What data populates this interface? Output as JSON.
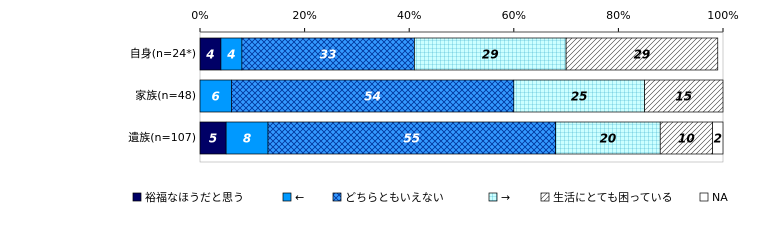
{
  "chart_data": {
    "type": "stacked-bar-horizontal",
    "categories": [
      "自身(n=24*)",
      "家族(n=48)",
      "遺族(n=107)"
    ],
    "series": [
      {
        "name": "裕福なほうだと思う",
        "color": "#000066",
        "pattern": "solid",
        "label_color": "#ffffff",
        "values": [
          4,
          null,
          5
        ]
      },
      {
        "name": "←",
        "color": "#0099ff",
        "pattern": "solid",
        "label_color": "#ffffff",
        "values": [
          4,
          6,
          8
        ]
      },
      {
        "name": "どちらともいえない",
        "color": "#3399ff",
        "pattern": "crosshatch",
        "label_color": "#ffffff",
        "values": [
          33,
          54,
          55
        ]
      },
      {
        "name": "→",
        "color": "#ccffff",
        "pattern": "grid",
        "label_color": "#000000",
        "values": [
          29,
          25,
          20
        ]
      },
      {
        "name": "生活にとても困っている",
        "color": "#ffffff",
        "pattern": "diagonal",
        "label_color": "#000000",
        "values": [
          29,
          15,
          10
        ]
      },
      {
        "name": "NA",
        "color": "#ffffff",
        "pattern": "solid",
        "label_color": "#000000",
        "values": [
          null,
          null,
          2
        ]
      }
    ],
    "xlim": [
      0,
      100
    ],
    "xticks": [
      {
        "value": 0,
        "label": "0%"
      },
      {
        "value": 20,
        "label": "20%"
      },
      {
        "value": 40,
        "label": "40%"
      },
      {
        "value": 60,
        "label": "60%"
      },
      {
        "value": 80,
        "label": "80%"
      },
      {
        "value": 100,
        "label": "100%"
      }
    ],
    "legend": "bottom"
  }
}
